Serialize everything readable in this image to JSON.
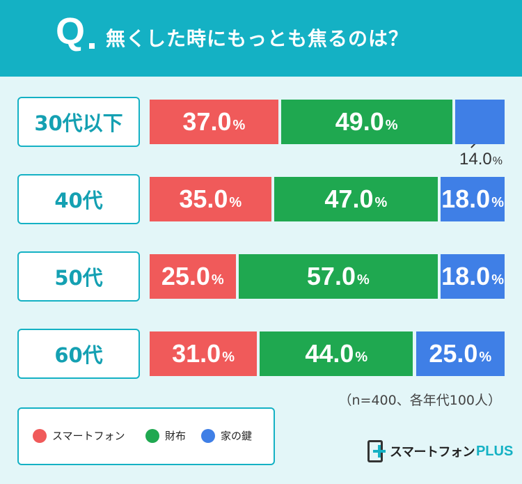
{
  "header": {
    "q": "Q",
    "title": "無くした時にもっとも焦るのは？"
  },
  "chart_data": {
    "type": "bar",
    "stacked": true,
    "orientation": "horizontal",
    "categories": [
      "30代以下",
      "40代",
      "50代",
      "60代"
    ],
    "series": [
      {
        "name": "スマートフォン",
        "color": "#f05a5a",
        "values": [
          37.0,
          35.0,
          25.0,
          31.0
        ]
      },
      {
        "name": "財布",
        "color": "#1fa850",
        "values": [
          49.0,
          47.0,
          57.0,
          44.0
        ]
      },
      {
        "name": "家の鍵",
        "color": "#3f7fe6",
        "values": [
          14.0,
          18.0,
          18.0,
          25.0
        ]
      }
    ],
    "unit": "%",
    "value_labels": [
      [
        "37.0",
        "49.0",
        "14.0"
      ],
      [
        "35.0",
        "47.0",
        "18.0"
      ],
      [
        "25.0",
        "57.0",
        "18.0"
      ],
      [
        "31.0",
        "44.0",
        "25.0"
      ]
    ],
    "legend_position": "bottom-left",
    "xlim": [
      0,
      100
    ]
  },
  "note": "（n=400、各年代100人）",
  "logo": {
    "text": "スマートフォン",
    "plus": "PLUS"
  }
}
